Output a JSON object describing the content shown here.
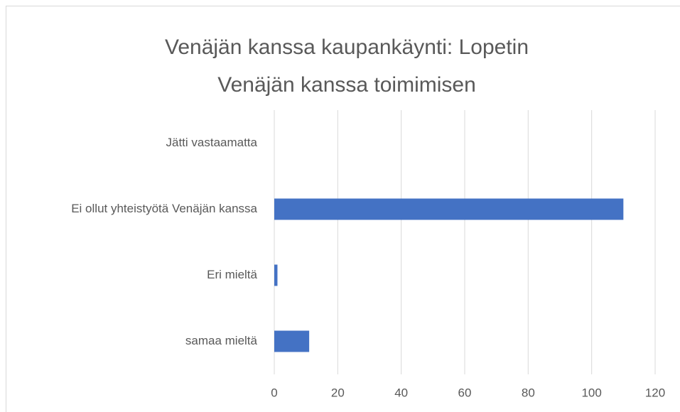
{
  "chart_data": {
    "type": "bar",
    "title": "Venäjän kanssa kaupankäynti: Lopetin Venäjän kanssa toimimisen",
    "categories": [
      "Jätti vastaamatta",
      "Ei ollut yhteistyötä Venäjän kanssa",
      "Eri mieltä",
      "samaa mieltä"
    ],
    "values": [
      0,
      110,
      1,
      11
    ],
    "color": "#4472c4",
    "xlim": [
      0,
      120
    ],
    "xticks": [
      0,
      20,
      40,
      60,
      80,
      100,
      120
    ],
    "grid": true
  }
}
